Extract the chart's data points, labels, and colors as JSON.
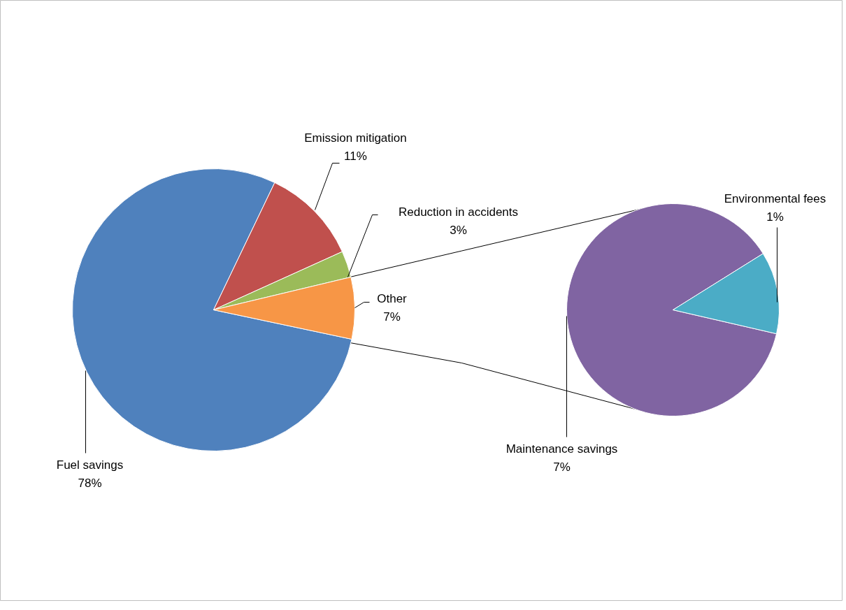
{
  "chart_data": [
    {
      "type": "pie",
      "categories": [
        "Fuel savings",
        "Emission mitigation",
        "Reduction in accidents",
        "Other"
      ],
      "values": [
        78,
        11,
        3,
        7
      ],
      "colors": [
        "#4f81bd",
        "#c0504d",
        "#9bbb59",
        "#f79646"
      ],
      "value_labels": [
        "78%",
        "11%",
        "3%",
        "7%"
      ],
      "legend": false
    },
    {
      "type": "pie",
      "categories": [
        "Maintenance savings",
        "Environmental fees"
      ],
      "values": [
        7,
        1
      ],
      "colors": [
        "#8064a2",
        "#4bacc6"
      ],
      "value_labels": [
        "7%",
        "1%"
      ],
      "legend": false
    }
  ]
}
